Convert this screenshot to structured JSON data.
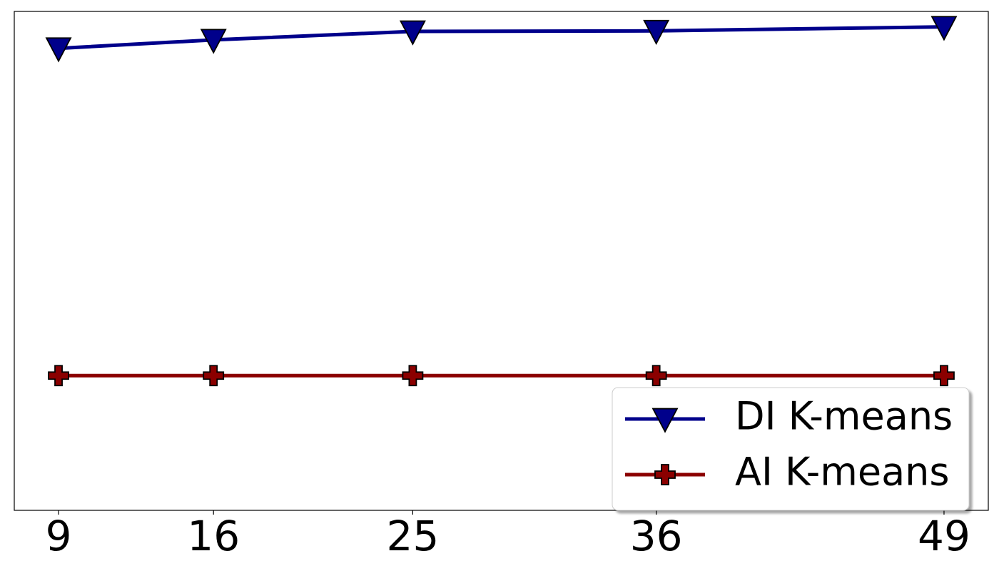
{
  "chart_data": {
    "type": "line",
    "x": [
      9,
      16,
      25,
      36,
      49
    ],
    "series": [
      {
        "name": "DI K-means",
        "color": "#00008b",
        "marker": "triangle-down",
        "values": [
          0.926,
          0.943,
          0.96,
          0.961,
          0.969
        ]
      },
      {
        "name": "AI K-means",
        "color": "#8b0000",
        "marker": "plus",
        "values": [
          0.27,
          0.27,
          0.27,
          0.27,
          0.27
        ]
      }
    ],
    "xlim": [
      7,
      51
    ],
    "xticks": [
      9,
      16,
      25,
      36,
      49
    ],
    "ylim": [
      0,
      1
    ],
    "legend": "lower right"
  }
}
